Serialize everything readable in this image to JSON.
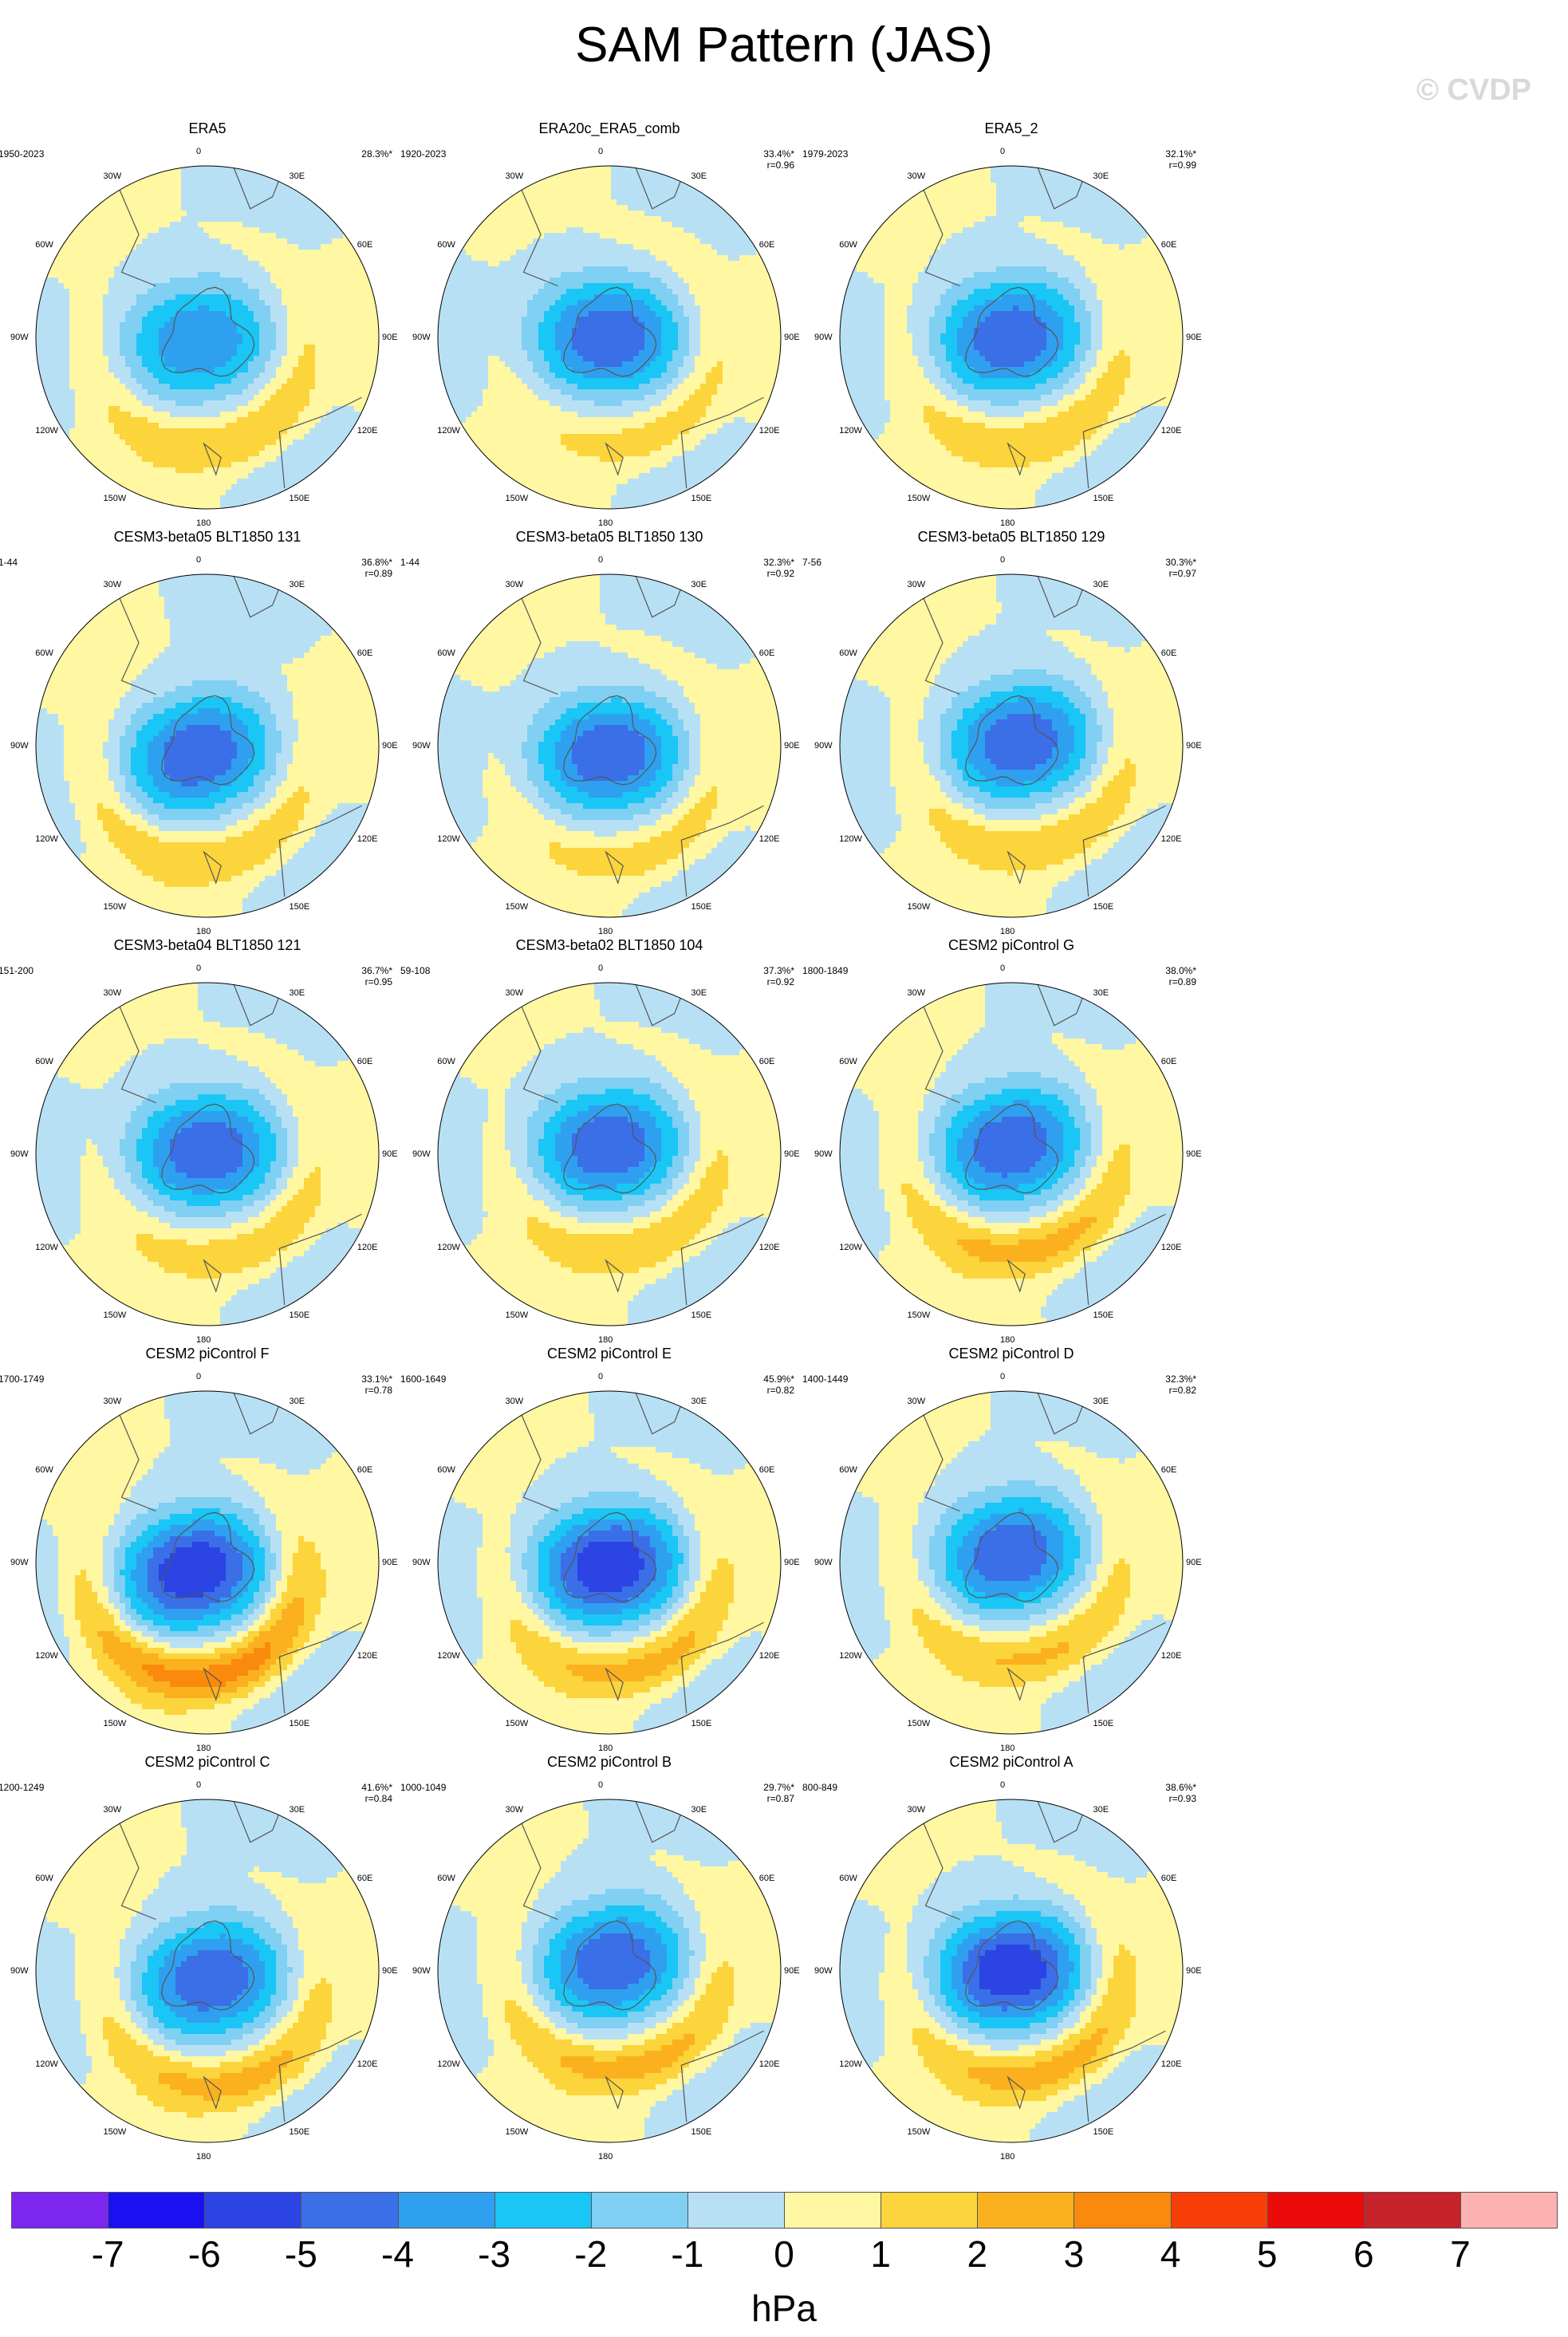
{
  "title": "SAM Pattern (JAS)",
  "watermark": "© CVDP",
  "units": "hPa",
  "lon_labels": [
    "0",
    "30E",
    "60E",
    "90E",
    "120E",
    "150E",
    "180",
    "150W",
    "120W",
    "90W",
    "60W",
    "30W"
  ],
  "colors": {
    "levels": [
      "#7d26f0",
      "#1a10f0",
      "#2b44e3",
      "#3a6fe8",
      "#2fa0f0",
      "#19c6f5",
      "#7fd0f2",
      "#b8e0f5",
      "#fff7a1",
      "#fcd43c",
      "#fbb11e",
      "#f98a0d",
      "#f73e09",
      "#ec0a0a",
      "#c7232b",
      "#fdb2b2"
    ],
    "land_outline": "#555555",
    "circle_edge": "#000000"
  },
  "chart_data": {
    "type": "heatmap",
    "projection": "south-polar-stereographic",
    "variable": "SAM pattern regression of sea-level pressure",
    "season": "JAS",
    "colorbar": {
      "ticks": [
        "-7",
        "-6",
        "-5",
        "-4",
        "-3",
        "-2",
        "-1",
        "0",
        "1",
        "2",
        "3",
        "4",
        "5",
        "6",
        "7"
      ],
      "levels": [
        -8,
        -7,
        -6,
        -5,
        -4,
        -3,
        -2,
        -1,
        0,
        1,
        2,
        3,
        4,
        5,
        6,
        7,
        8
      ]
    },
    "panels": [
      {
        "name": "ERA5",
        "period": "1950-2023",
        "pct": "28.3%*",
        "r": "",
        "center_min": -4,
        "ring_max": 2,
        "rot": 20,
        "cx": -0.05,
        "cy": 0.02
      },
      {
        "name": "ERA20c_ERA5_comb",
        "period": "1920-2023",
        "pct": "33.4%*",
        "r": "r=0.96",
        "center_min": -5,
        "ring_max": 1.6,
        "rot": 0,
        "cx": 0.0,
        "cy": 0.0
      },
      {
        "name": "ERA5_2",
        "period": "1979-2023",
        "pct": "32.1%*",
        "r": "r=0.99",
        "center_min": -5,
        "ring_max": 2,
        "rot": 20,
        "cx": 0.0,
        "cy": 0.0
      },
      {
        "name": "CESM3-beta05 BLT1850 131",
        "period": "1-44",
        "pct": "36.8%*",
        "r": "r=0.89",
        "center_min": -5,
        "ring_max": 2,
        "rot": 40,
        "cx": -0.05,
        "cy": 0.05
      },
      {
        "name": "CESM3-beta05 BLT1850 130",
        "period": "1-44",
        "pct": "32.3%*",
        "r": "r=0.92",
        "center_min": -5,
        "ring_max": 1.6,
        "rot": 10,
        "cx": 0.0,
        "cy": 0.05
      },
      {
        "name": "CESM3-beta05 BLT1850 129",
        "period": "7-56",
        "pct": "30.3%*",
        "r": "r=0.97",
        "center_min": -5,
        "ring_max": 2,
        "rot": 25,
        "cx": 0.05,
        "cy": -0.02
      },
      {
        "name": "CESM3-beta04 BLT1850 121",
        "period": "151-200",
        "pct": "36.7%*",
        "r": "r=0.95",
        "center_min": -5,
        "ring_max": 1.8,
        "rot": 10,
        "cx": 0.0,
        "cy": -0.02
      },
      {
        "name": "CESM3-beta02 BLT1850 104",
        "period": "59-108",
        "pct": "37.3%*",
        "r": "r=0.92",
        "center_min": -5,
        "ring_max": 2,
        "rot": 15,
        "cx": 0.0,
        "cy": -0.05
      },
      {
        "name": "CESM2 piControl G",
        "period": "1800-1849",
        "pct": "38.0%*",
        "r": "r=0.89",
        "center_min": -5,
        "ring_max": 2.5,
        "rot": 30,
        "cx": 0.0,
        "cy": -0.05
      },
      {
        "name": "CESM2 piControl F",
        "period": "1700-1749",
        "pct": "33.1%*",
        "r": "r=0.78",
        "center_min": -6,
        "ring_max": 3.6,
        "rot": 30,
        "cx": -0.08,
        "cy": 0.05
      },
      {
        "name": "CESM2 piControl E",
        "period": "1600-1649",
        "pct": "45.9%*",
        "r": "r=0.82",
        "center_min": -6,
        "ring_max": 2.5,
        "rot": 20,
        "cx": 0.0,
        "cy": 0.02
      },
      {
        "name": "CESM2 piControl D",
        "period": "1400-1449",
        "pct": "32.3%*",
        "r": "r=0.82",
        "center_min": -5,
        "ring_max": 2.2,
        "rot": 25,
        "cx": 0.0,
        "cy": -0.05
      },
      {
        "name": "CESM2 piControl C",
        "period": "1200-1249",
        "pct": "41.6%*",
        "r": "r=0.84",
        "center_min": -5,
        "ring_max": 2.5,
        "rot": 30,
        "cx": 0.02,
        "cy": 0.05
      },
      {
        "name": "CESM2 piControl B",
        "period": "1000-1049",
        "pct": "29.7%*",
        "r": "r=0.87",
        "center_min": -5,
        "ring_max": 2.5,
        "rot": 30,
        "cx": 0.02,
        "cy": -0.05
      },
      {
        "name": "CESM2 piControl A",
        "period": "800-849",
        "pct": "38.6%*",
        "r": "r=0.93",
        "center_min": -6,
        "ring_max": 2.6,
        "rot": 15,
        "cx": 0.0,
        "cy": 0.0
      }
    ]
  }
}
